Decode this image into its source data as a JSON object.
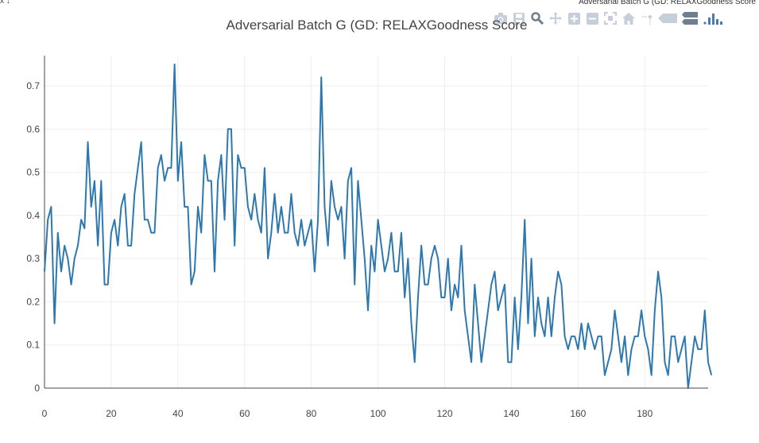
{
  "window": {
    "corner_glyphs": "x ↓",
    "title": "Adversarial Batch G (GD: RELAXGoodness Score"
  },
  "modebar": {
    "icons": [
      "camera-icon",
      "save-icon",
      "zoom-icon",
      "pan-icon",
      "zoom-in-icon",
      "zoom-out-icon",
      "autoscale-icon",
      "home-icon",
      "spike-lines-icon",
      "hover-closest-icon",
      "hover-compare-icon",
      "plotly-logo-icon"
    ],
    "color": "#c6cfd9",
    "active_color": "#4a7bb5"
  },
  "chart_data": {
    "type": "line",
    "title": "Adversarial Batch G (GD: RELAXGoodness Score",
    "xlabel": "",
    "ylabel": "",
    "xlim": [
      0,
      199
    ],
    "ylim": [
      0,
      0.77
    ],
    "x_ticks": [
      0,
      20,
      40,
      60,
      80,
      100,
      120,
      140,
      160,
      180
    ],
    "y_ticks": [
      0,
      0.1,
      0.2,
      0.3,
      0.4,
      0.5,
      0.6,
      0.7
    ],
    "x_tick_labels": [
      "0",
      "20",
      "40",
      "60",
      "80",
      "100",
      "120",
      "140",
      "160",
      "180"
    ],
    "y_tick_labels": [
      "0",
      "0.1",
      "0.2",
      "0.3",
      "0.4",
      "0.5",
      "0.6",
      "0.7"
    ],
    "grid": true,
    "line_color": "#2e78b0",
    "series": [
      {
        "values": [
          0.27,
          0.39,
          0.42,
          0.15,
          0.36,
          0.27,
          0.33,
          0.3,
          0.24,
          0.3,
          0.33,
          0.39,
          0.37,
          0.57,
          0.42,
          0.48,
          0.33,
          0.48,
          0.24,
          0.24,
          0.36,
          0.39,
          0.33,
          0.42,
          0.45,
          0.33,
          0.33,
          0.45,
          0.51,
          0.57,
          0.39,
          0.39,
          0.36,
          0.36,
          0.51,
          0.54,
          0.48,
          0.51,
          0.51,
          0.75,
          0.48,
          0.57,
          0.42,
          0.42,
          0.24,
          0.27,
          0.42,
          0.36,
          0.54,
          0.48,
          0.48,
          0.27,
          0.48,
          0.54,
          0.39,
          0.6,
          0.6,
          0.33,
          0.54,
          0.51,
          0.51,
          0.42,
          0.39,
          0.45,
          0.39,
          0.36,
          0.51,
          0.3,
          0.36,
          0.45,
          0.36,
          0.42,
          0.36,
          0.36,
          0.45,
          0.36,
          0.33,
          0.39,
          0.33,
          0.36,
          0.39,
          0.27,
          0.39,
          0.72,
          0.42,
          0.33,
          0.48,
          0.42,
          0.39,
          0.42,
          0.3,
          0.48,
          0.51,
          0.24,
          0.48,
          0.39,
          0.3,
          0.18,
          0.33,
          0.27,
          0.39,
          0.33,
          0.27,
          0.3,
          0.36,
          0.27,
          0.27,
          0.36,
          0.21,
          0.3,
          0.15,
          0.06,
          0.21,
          0.33,
          0.24,
          0.24,
          0.3,
          0.33,
          0.3,
          0.21,
          0.21,
          0.3,
          0.18,
          0.24,
          0.21,
          0.33,
          0.18,
          0.12,
          0.06,
          0.24,
          0.15,
          0.06,
          0.12,
          0.18,
          0.24,
          0.27,
          0.18,
          0.21,
          0.24,
          0.06,
          0.06,
          0.21,
          0.09,
          0.21,
          0.39,
          0.15,
          0.3,
          0.12,
          0.21,
          0.15,
          0.12,
          0.21,
          0.12,
          0.21,
          0.27,
          0.24,
          0.12,
          0.09,
          0.12,
          0.12,
          0.09,
          0.15,
          0.09,
          0.15,
          0.12,
          0.09,
          0.12,
          0.12,
          0.03,
          0.06,
          0.09,
          0.18,
          0.12,
          0.06,
          0.12,
          0.03,
          0.09,
          0.12,
          0.12,
          0.18,
          0.12,
          0.09,
          0.03,
          0.18,
          0.27,
          0.21,
          0.06,
          0.03,
          0.12,
          0.12,
          0.06,
          0.09,
          0.12,
          0.0,
          0.06,
          0.12,
          0.09,
          0.09,
          0.18,
          0.06,
          0.03
        ]
      }
    ]
  }
}
